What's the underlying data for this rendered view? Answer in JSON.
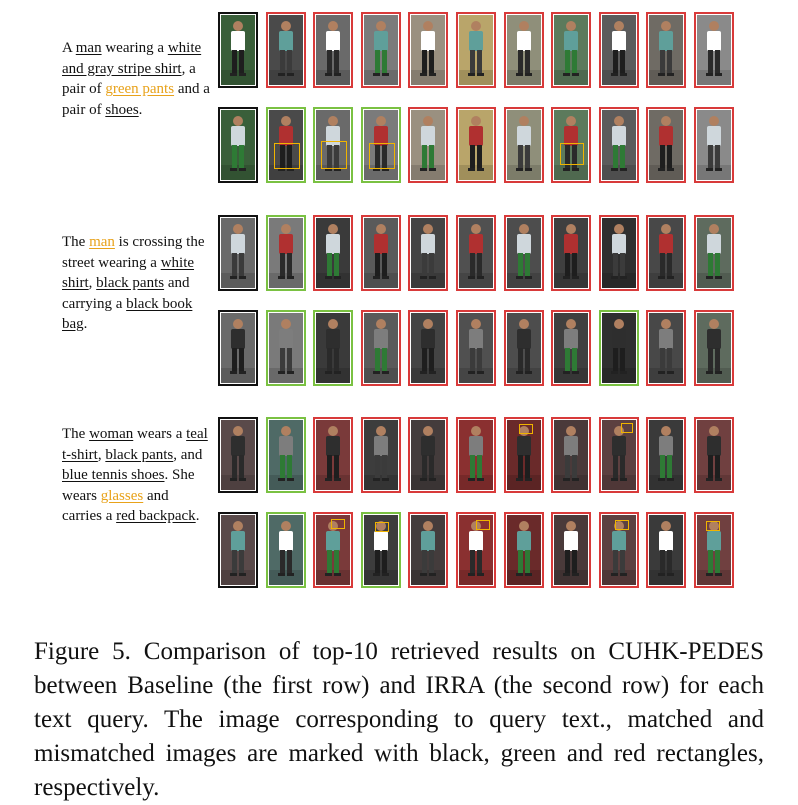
{
  "queries": [
    {
      "segments": [
        {
          "t": "A "
        },
        {
          "t": "man",
          "u": true
        },
        {
          "t": " wearing a "
        },
        {
          "t": "white and gray stripe shirt",
          "u": true
        },
        {
          "t": ", a pair of "
        },
        {
          "t": "green pants",
          "u": true,
          "hl": true
        },
        {
          "t": " and a pair of "
        },
        {
          "t": "shoes",
          "u": true
        },
        {
          "t": "."
        }
      ],
      "baseline": [
        "q",
        "r",
        "r",
        "r",
        "r",
        "r",
        "r",
        "r",
        "r",
        "r",
        "r"
      ],
      "irra": [
        "q",
        "g",
        "g",
        "g",
        "r",
        "r",
        "r",
        "r",
        "r",
        "r",
        "r"
      ],
      "palette": [
        "#3a5f3a",
        "#4a4a4a",
        "#6a6a6a",
        "#7b7b7b",
        "#9a9080",
        "#b9a56a",
        "#8f8f7a",
        "#5c7a5c",
        "#5b5b5b",
        "#6f6b64",
        "#8a8a8a"
      ]
    },
    {
      "segments": [
        {
          "t": "The "
        },
        {
          "t": "man",
          "u": true,
          "hl": true
        },
        {
          "t": " is crossing the street wearing a "
        },
        {
          "t": "white shirt",
          "u": true
        },
        {
          "t": ", "
        },
        {
          "t": "black pants",
          "u": true
        },
        {
          "t": " and carrying a "
        },
        {
          "t": "black book bag",
          "u": true
        },
        {
          "t": "."
        }
      ],
      "baseline": [
        "q",
        "g",
        "r",
        "r",
        "r",
        "r",
        "r",
        "r",
        "r",
        "r",
        "r"
      ],
      "irra": [
        "q",
        "g",
        "g",
        "r",
        "r",
        "r",
        "r",
        "r",
        "g",
        "r",
        "r"
      ],
      "palette": [
        "#6a6a6a",
        "#7a7a7a",
        "#3a3a3a",
        "#5a5a5a",
        "#444444",
        "#505050",
        "#4d4d4d",
        "#3f3f3f",
        "#2f2f2f",
        "#484848",
        "#5e6b5e"
      ]
    },
    {
      "segments": [
        {
          "t": "The "
        },
        {
          "t": "woman",
          "u": true
        },
        {
          "t": " wears a "
        },
        {
          "t": "teal t-shirt",
          "u": true
        },
        {
          "t": ", "
        },
        {
          "t": "black pants",
          "u": true
        },
        {
          "t": ", and "
        },
        {
          "t": "blue tennis shoes",
          "u": true
        },
        {
          "t": ". She wears "
        },
        {
          "t": "glasses",
          "u": true,
          "hl": true
        },
        {
          "t": " and carries a "
        },
        {
          "t": "red backpack",
          "u": true
        },
        {
          "t": "."
        }
      ],
      "baseline": [
        "q",
        "g",
        "r",
        "r",
        "r",
        "r",
        "r",
        "r",
        "r",
        "r",
        "r"
      ],
      "irra": [
        "q",
        "g",
        "r",
        "g",
        "r",
        "r",
        "r",
        "r",
        "r",
        "r",
        "r"
      ],
      "palette": [
        "#5a4a4a",
        "#4f6a66",
        "#7a3a3a",
        "#3d3d3d",
        "#443c3c",
        "#8a3030",
        "#6a2a2a",
        "#4a3a3a",
        "#5c4040",
        "#3a3a3a",
        "#704040"
      ]
    }
  ],
  "caption": "Figure 5.  Comparison of top-10 retrieved results on CUHK-PEDES between Baseline (the first row) and IRRA (the second row) for each text query. The image corresponding to query text., matched and mismatched images are marked with black, green and red rectangles, respectively."
}
